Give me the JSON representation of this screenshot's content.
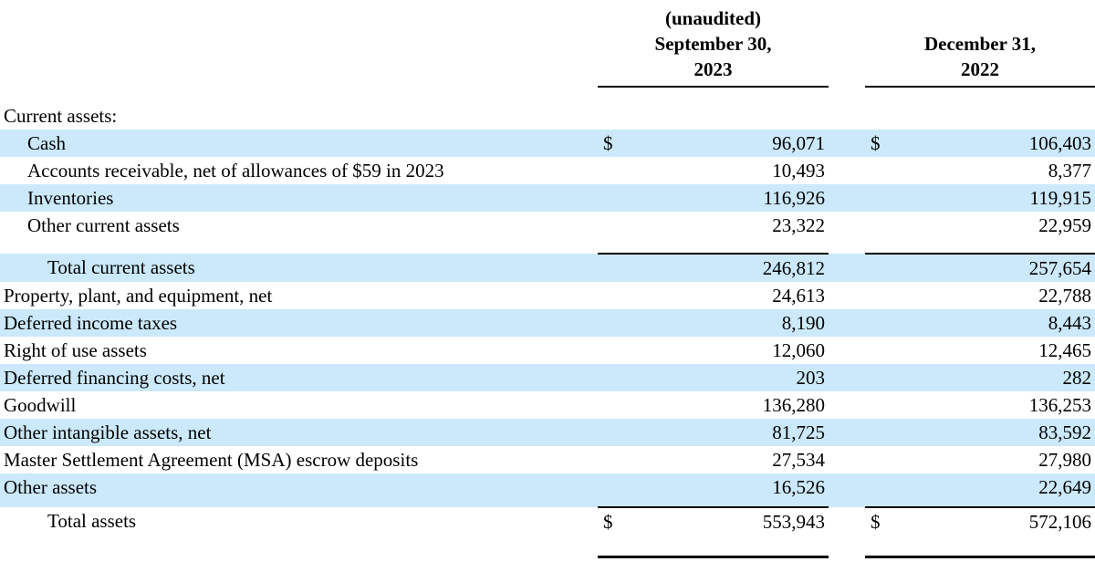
{
  "colors": {
    "row_highlight": "#cbe9fa",
    "rule": "#000000",
    "text": "#000000",
    "background": "#ffffff"
  },
  "table": {
    "columns": [
      {
        "note": "(unaudited)",
        "date": "September 30,",
        "year": "2023"
      },
      {
        "note": "",
        "date": "December 31,",
        "year": "2022"
      }
    ],
    "rows": [
      {
        "label": "Current assets:",
        "indent": 0,
        "highlight": false,
        "currency1": "",
        "value1": "",
        "currency2": "",
        "value2": "",
        "rule": null
      },
      {
        "label": "Cash",
        "indent": 1,
        "highlight": true,
        "currency1": "$",
        "value1": "96,071",
        "currency2": "$",
        "value2": "106,403",
        "rule": null
      },
      {
        "label": "Accounts receivable, net of allowances of $59 in 2023",
        "indent": 1,
        "highlight": false,
        "currency1": "",
        "value1": "10,493",
        "currency2": "",
        "value2": "8,377",
        "rule": null
      },
      {
        "label": "Inventories",
        "indent": 1,
        "highlight": true,
        "currency1": "",
        "value1": "116,926",
        "currency2": "",
        "value2": "119,915",
        "rule": null
      },
      {
        "label": "Other current assets",
        "indent": 1,
        "highlight": false,
        "currency1": "",
        "value1": "23,322",
        "currency2": "",
        "value2": "22,959",
        "rule": "single"
      },
      {
        "label": "Total current assets",
        "indent": 2,
        "highlight": true,
        "currency1": "",
        "value1": "246,812",
        "currency2": "",
        "value2": "257,654",
        "rule": null
      },
      {
        "label": "Property, plant, and equipment, net",
        "indent": 0,
        "highlight": false,
        "currency1": "",
        "value1": "24,613",
        "currency2": "",
        "value2": "22,788",
        "rule": null
      },
      {
        "label": "Deferred income taxes",
        "indent": 0,
        "highlight": true,
        "currency1": "",
        "value1": "8,190",
        "currency2": "",
        "value2": "8,443",
        "rule": null
      },
      {
        "label": "Right of use assets",
        "indent": 0,
        "highlight": false,
        "currency1": "",
        "value1": "12,060",
        "currency2": "",
        "value2": "12,465",
        "rule": null
      },
      {
        "label": "Deferred financing costs, net",
        "indent": 0,
        "highlight": true,
        "currency1": "",
        "value1": "203",
        "currency2": "",
        "value2": "282",
        "rule": null
      },
      {
        "label": "Goodwill",
        "indent": 0,
        "highlight": false,
        "currency1": "",
        "value1": "136,280",
        "currency2": "",
        "value2": "136,253",
        "rule": null
      },
      {
        "label": "Other intangible assets, net",
        "indent": 0,
        "highlight": true,
        "currency1": "",
        "value1": "81,725",
        "currency2": "",
        "value2": "83,592",
        "rule": null
      },
      {
        "label": "Master Settlement Agreement (MSA) escrow deposits",
        "indent": 0,
        "highlight": false,
        "currency1": "",
        "value1": "27,534",
        "currency2": "",
        "value2": "27,980",
        "rule": null
      },
      {
        "label": "Other assets",
        "indent": 0,
        "highlight": true,
        "currency1": "",
        "value1": "16,526",
        "currency2": "",
        "value2": "22,649",
        "rule": "single_tight"
      },
      {
        "label": "Total assets",
        "indent": 2,
        "highlight": false,
        "currency1": "$",
        "value1": "553,943",
        "currency2": "$",
        "value2": "572,106",
        "rule": "final"
      }
    ]
  }
}
